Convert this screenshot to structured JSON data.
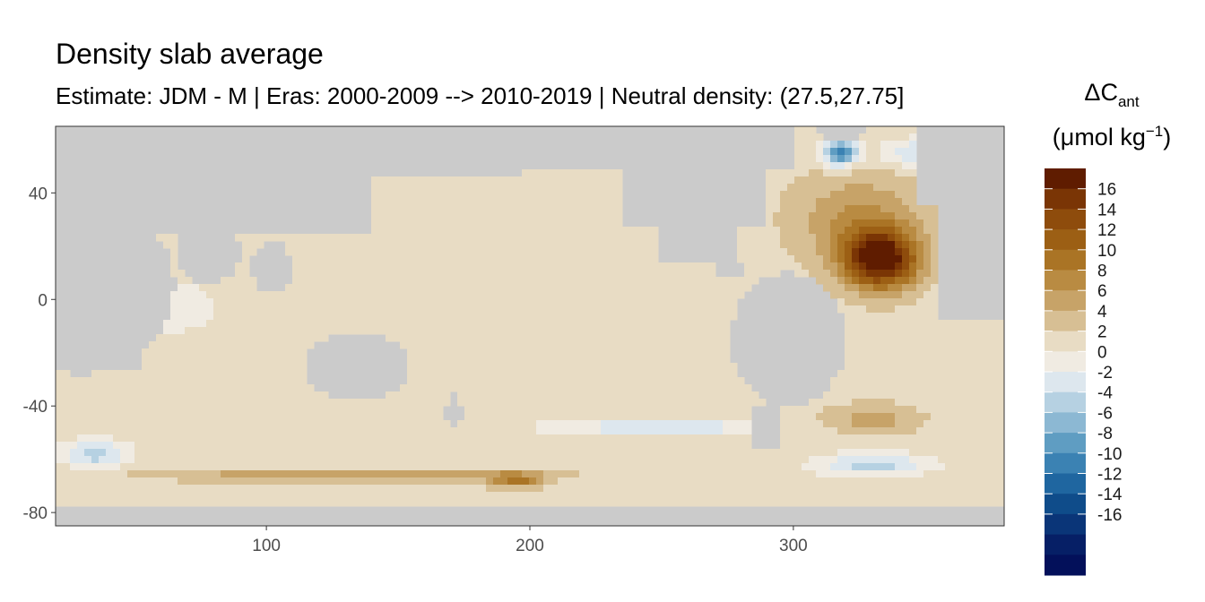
{
  "chart_data": {
    "type": "heatmap",
    "title": "Density slab average",
    "subtitle": "Estimate: JDM - M | Eras: 2000-2009 --> 2010-2019 | Neutral density: (27.5,27.75]",
    "xlabel": "",
    "ylabel": "",
    "xlim": [
      20,
      380
    ],
    "ylim": [
      -85,
      65
    ],
    "x_ticks": [
      100,
      200,
      300
    ],
    "y_ticks": [
      40,
      0,
      -40,
      -80
    ],
    "grid": false,
    "legend_position": "right",
    "legend": {
      "title_main": "ΔC",
      "title_sub": "ant",
      "units_main": "(μmol kg",
      "units_sup": "−1",
      "units_close": ")",
      "breaks": [
        16,
        14,
        12,
        10,
        8,
        6,
        4,
        2,
        0,
        -2,
        -4,
        -6,
        -8,
        -10,
        -12,
        -14,
        -16
      ],
      "colors": [
        "#5f1c00",
        "#7a3505",
        "#8e4c0c",
        "#9c5f14",
        "#aa7425",
        "#b98b42",
        "#c7a368",
        "#d7bf94",
        "#e8dcc4",
        "#f0ebe2",
        "#dde7ee",
        "#b6d1e2",
        "#8cb8d3",
        "#5f9dc2",
        "#3b82b3",
        "#1f66a0",
        "#0f4c8a",
        "#0a3578",
        "#061f66",
        "#03105a"
      ]
    },
    "fields": {
      "land": "#cbcbcb",
      "no_data": "#ffffff",
      "background_value": 1,
      "notes": "Spatial field: warm anomalies (up to ~17) centered in North Atlantic near 330E, 15N; cool anomalies (down to ~-12) in Labrador Sea and Southern Ocean; warm band 2-8 along 65S."
    }
  }
}
